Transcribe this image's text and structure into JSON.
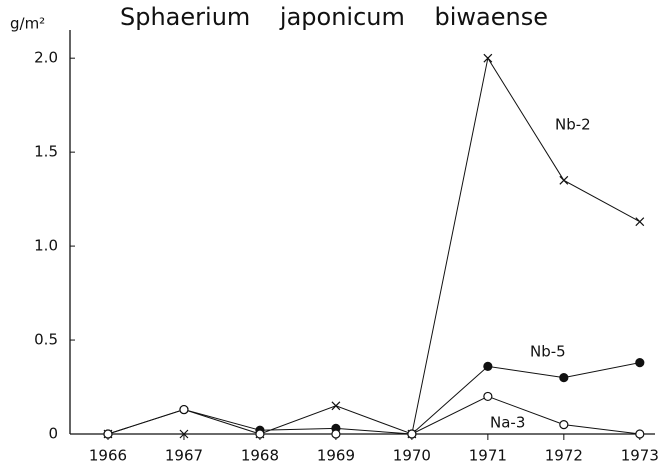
{
  "chart_data": {
    "type": "line",
    "title": "Sphaerium japonicum biwaense",
    "y_label": "g/m²",
    "x": [
      1966,
      1967,
      1968,
      1969,
      1970,
      1971,
      1972,
      1973
    ],
    "xlim": [
      1965.5,
      1973.2
    ],
    "xticks": [
      1966,
      1967,
      1968,
      1969,
      1970,
      1971,
      1972,
      1973
    ],
    "ylim": [
      0,
      2.15
    ],
    "yticks": [
      0,
      0.5,
      {
        "value": 1.0,
        "label": "1.0"
      },
      1.5,
      {
        "value": 2.0,
        "label": "2.0"
      }
    ],
    "grid": false,
    "series": [
      {
        "name": "Nb-2",
        "color": "#111111",
        "marker": "x",
        "values": [
          0,
          0,
          0,
          0.15,
          0,
          2.0,
          1.35,
          1.13
        ]
      },
      {
        "name": "Nb-5",
        "color": "#111111",
        "marker": "filled",
        "values": [
          0,
          0.13,
          0.02,
          0.03,
          0,
          0.36,
          0.3,
          0.38
        ]
      },
      {
        "name": "Na-3",
        "color": "#111111",
        "marker": "open",
        "values": [
          0,
          0.13,
          0,
          0,
          0,
          0.2,
          0.05,
          0
        ]
      }
    ]
  }
}
